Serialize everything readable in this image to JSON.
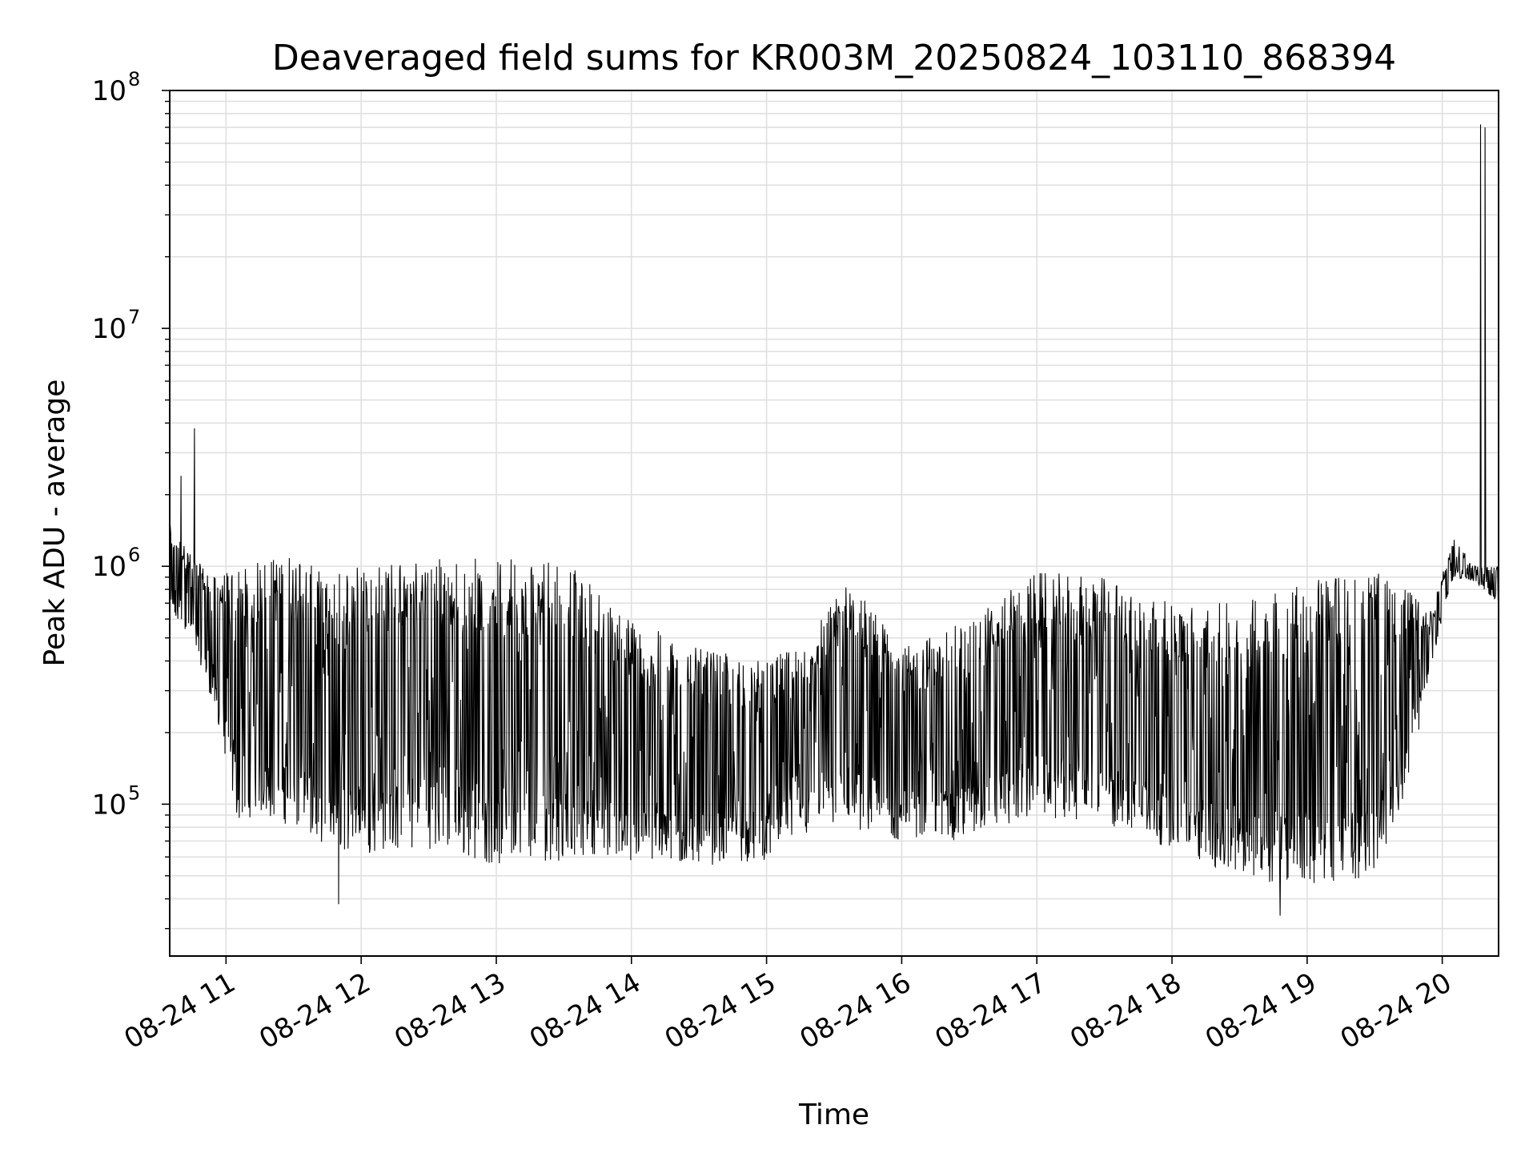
{
  "chart_data": {
    "type": "line",
    "title": "Deaveraged field sums for KR003M_20250824_103110_868394",
    "xlabel": "Time",
    "ylabel": "Peak ADU - average",
    "y_scale": "log",
    "ylim": [
      23000,
      100000000
    ],
    "xlim": [
      "08-24 10:35",
      "08-24 20:25"
    ],
    "grid": true,
    "line_color": "#000000",
    "grid_color": "#e0e0e0",
    "x_ticks": [
      {
        "time": "08-24 11:00",
        "label": "08-24 11"
      },
      {
        "time": "08-24 12:00",
        "label": "08-24 12"
      },
      {
        "time": "08-24 13:00",
        "label": "08-24 13"
      },
      {
        "time": "08-24 14:00",
        "label": "08-24 14"
      },
      {
        "time": "08-24 15:00",
        "label": "08-24 15"
      },
      {
        "time": "08-24 16:00",
        "label": "08-24 16"
      },
      {
        "time": "08-24 17:00",
        "label": "08-24 17"
      },
      {
        "time": "08-24 18:00",
        "label": "08-24 18"
      },
      {
        "time": "08-24 19:00",
        "label": "08-24 19"
      },
      {
        "time": "08-24 20:00",
        "label": "08-24 20"
      }
    ],
    "y_ticks": [
      {
        "value": 100000,
        "base": "10",
        "exp": "5"
      },
      {
        "value": 1000000,
        "base": "10",
        "exp": "6"
      },
      {
        "value": 10000000,
        "base": "10",
        "exp": "7"
      },
      {
        "value": 100000000,
        "base": "10",
        "exp": "8"
      }
    ],
    "series": [
      {
        "envelope": [
          {
            "time": "08-24 10:35",
            "low": 600000,
            "high": 1500000
          },
          {
            "time": "08-24 10:45",
            "low": 500000,
            "high": 1100000
          },
          {
            "time": "08-24 10:55",
            "low": 250000,
            "high": 900000
          },
          {
            "time": "08-24 11:05",
            "low": 85000,
            "high": 1000000
          },
          {
            "time": "08-24 11:15",
            "low": 90000,
            "high": 1050000
          },
          {
            "time": "08-24 11:30",
            "low": 80000,
            "high": 1150000
          },
          {
            "time": "08-24 11:45",
            "low": 65000,
            "high": 900000
          },
          {
            "time": "08-24 12:00",
            "low": 62000,
            "high": 1050000
          },
          {
            "time": "08-24 12:30",
            "low": 65000,
            "high": 1100000
          },
          {
            "time": "08-24 13:00",
            "low": 55000,
            "high": 1100000
          },
          {
            "time": "08-24 13:30",
            "low": 58000,
            "high": 1100000
          },
          {
            "time": "08-24 13:45",
            "low": 62000,
            "high": 800000
          },
          {
            "time": "08-24 14:00",
            "low": 55000,
            "high": 600000
          },
          {
            "time": "08-24 14:30",
            "low": 55000,
            "high": 450000
          },
          {
            "time": "08-24 15:00",
            "low": 58000,
            "high": 400000
          },
          {
            "time": "08-24 15:20",
            "low": 75000,
            "high": 500000
          },
          {
            "time": "08-24 15:35",
            "low": 80000,
            "high": 950000
          },
          {
            "time": "08-24 16:00",
            "low": 70000,
            "high": 450000
          },
          {
            "time": "08-24 16:30",
            "low": 70000,
            "high": 600000
          },
          {
            "time": "08-24 17:00",
            "low": 90000,
            "high": 950000
          },
          {
            "time": "08-24 17:30",
            "low": 80000,
            "high": 900000
          },
          {
            "time": "08-24 18:00",
            "low": 65000,
            "high": 700000
          },
          {
            "time": "08-24 18:30",
            "low": 48000,
            "high": 700000
          },
          {
            "time": "08-24 19:00",
            "low": 45000,
            "high": 900000
          },
          {
            "time": "08-24 19:30",
            "low": 50000,
            "high": 950000
          },
          {
            "time": "08-24 19:45",
            "low": 120000,
            "high": 800000
          },
          {
            "time": "08-24 19:55",
            "low": 380000,
            "high": 650000
          },
          {
            "time": "08-24 20:05",
            "low": 900000,
            "high": 1300000
          },
          {
            "time": "08-24 20:15",
            "low": 850000,
            "high": 1000000
          },
          {
            "time": "08-24 20:25",
            "low": 700000,
            "high": 1000000
          }
        ],
        "spikes": [
          {
            "time": "08-24 10:40",
            "value": 2400000
          },
          {
            "time": "08-24 10:46",
            "value": 3800000
          },
          {
            "time": "08-24 20:17",
            "value": 72000000
          },
          {
            "time": "08-24 20:19",
            "value": 70000000
          }
        ],
        "dips": [
          {
            "time": "08-24 11:50",
            "value": 38000
          },
          {
            "time": "08-24 18:48",
            "value": 34000
          }
        ]
      }
    ]
  }
}
